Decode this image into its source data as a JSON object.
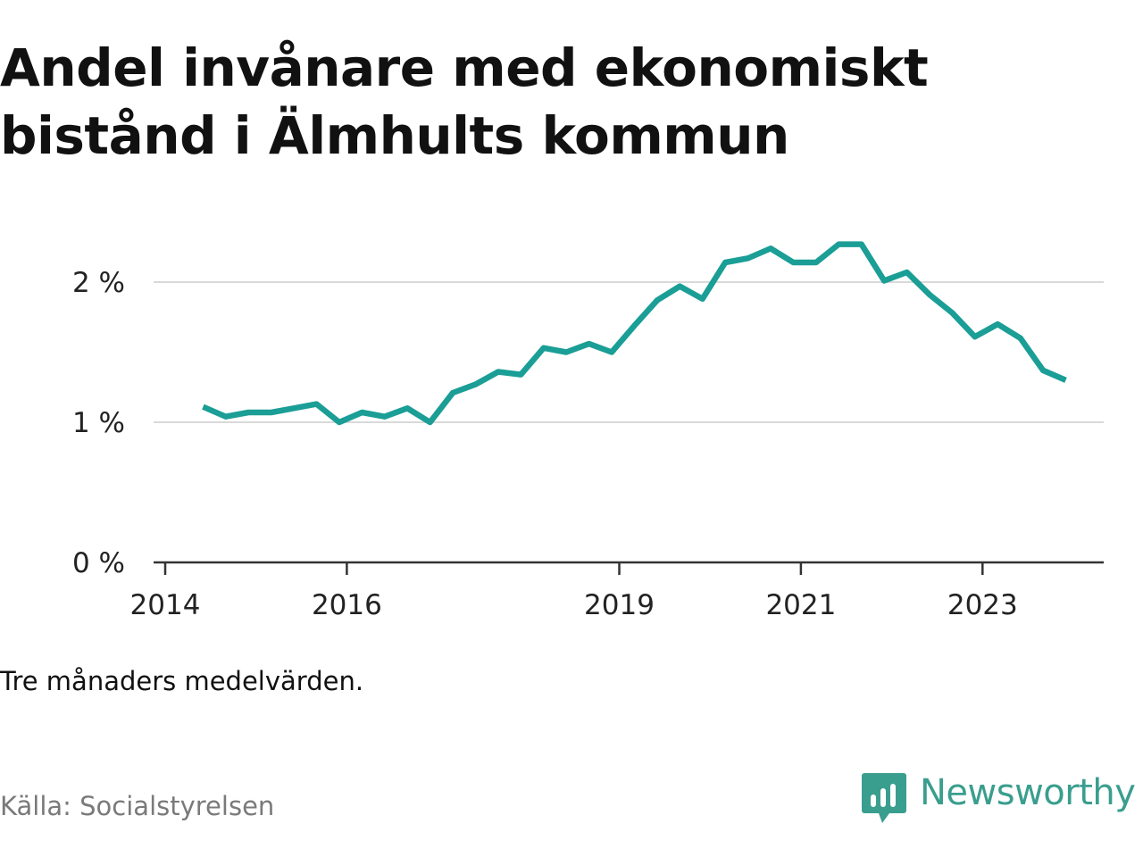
{
  "title": "Andel invånare med ekonomiskt bistånd i Älmhults kommun",
  "note": "Tre månaders medelvärden.",
  "source": "Källa: Socialstyrelsen",
  "brand": {
    "name": "Newsworthy",
    "icon": "newsworthy-logo-icon",
    "color": "#3a9e8e"
  },
  "chart_data": {
    "type": "line",
    "title": "Andel invånare med ekonomiskt bistånd i Älmhults kommun",
    "xlabel": "",
    "ylabel": "",
    "x_ticks": [
      "2014",
      "2016",
      "2019",
      "2021",
      "2023"
    ],
    "y_ticks": [
      "0 %",
      "1 %",
      "2 %"
    ],
    "y_tick_values": [
      0,
      1,
      2
    ],
    "ylim": [
      0,
      2.4
    ],
    "grid": true,
    "line_color": "#1a9e96",
    "series": [
      {
        "x": [
          "2014-06",
          "2014-09",
          "2014-12",
          "2015-03",
          "2015-06",
          "2015-09",
          "2015-12",
          "2016-03",
          "2016-06",
          "2016-09",
          "2016-12",
          "2017-03",
          "2017-06",
          "2017-09",
          "2017-12",
          "2018-03",
          "2018-06",
          "2018-09",
          "2018-12",
          "2019-03",
          "2019-06",
          "2019-09",
          "2019-12",
          "2020-03",
          "2020-06",
          "2020-09",
          "2020-12",
          "2021-03",
          "2021-06",
          "2021-09",
          "2021-12",
          "2022-03",
          "2022-06",
          "2022-09",
          "2022-12",
          "2023-03",
          "2023-06",
          "2023-09",
          "2023-12"
        ],
        "values": [
          1.11,
          1.04,
          1.07,
          1.07,
          1.1,
          1.13,
          1.0,
          1.07,
          1.04,
          1.1,
          1.0,
          1.21,
          1.27,
          1.36,
          1.34,
          1.53,
          1.5,
          1.56,
          1.5,
          1.69,
          1.87,
          1.97,
          1.88,
          2.14,
          2.17,
          2.24,
          2.14,
          2.14,
          2.27,
          2.27,
          2.01,
          2.07,
          1.91,
          1.78,
          1.61,
          1.7,
          1.6,
          1.37,
          1.3
        ]
      }
    ]
  }
}
